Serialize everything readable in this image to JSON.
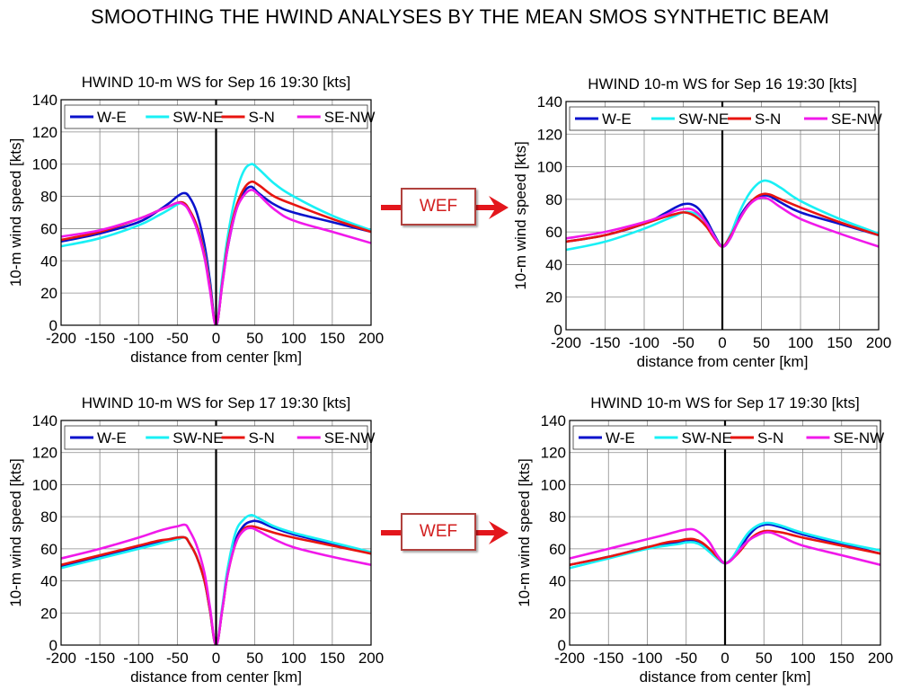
{
  "page": {
    "title": "SMOOTHING THE HWIND ANALYSES BY THE MEAN SMOS SYNTHETIC BEAM"
  },
  "arrow_label": "WEF",
  "series_colors": {
    "W-E": "#0a12cc",
    "SW-NE": "#19f0f5",
    "S-N": "#e8140f",
    "SE-NW": "#f019ea"
  },
  "chart_data": [
    {
      "type": "line",
      "title": "HWIND 10-m WS for Sep 16 19:30 [kts]",
      "xlabel": "distance from center [km]",
      "ylabel": "10-m wind speed [kts]",
      "xlim": [
        -200,
        200
      ],
      "ylim": [
        0,
        140
      ],
      "xticks": [
        -200,
        -150,
        -100,
        -50,
        0,
        50,
        100,
        150,
        200
      ],
      "yticks": [
        0,
        20,
        40,
        60,
        80,
        100,
        120,
        140
      ],
      "grid": true,
      "legend": "top",
      "series": [
        {
          "name": "W-E",
          "x": [
            -200,
            -150,
            -100,
            -75,
            -60,
            -50,
            -42,
            -35,
            -25,
            -15,
            -8,
            0,
            8,
            15,
            25,
            35,
            45,
            55,
            75,
            100,
            150,
            200
          ],
          "y": [
            52,
            57,
            64,
            71,
            76,
            80,
            82,
            80,
            70,
            50,
            28,
            0,
            26,
            48,
            70,
            82,
            86,
            82,
            75,
            70,
            64,
            58
          ]
        },
        {
          "name": "SW-NE",
          "x": [
            -200,
            -150,
            -100,
            -75,
            -60,
            -50,
            -42,
            -35,
            -25,
            -15,
            -8,
            0,
            8,
            15,
            25,
            35,
            45,
            55,
            75,
            100,
            150,
            200
          ],
          "y": [
            49,
            54,
            62,
            68,
            72,
            75,
            76,
            72,
            62,
            45,
            25,
            0,
            30,
            55,
            80,
            95,
            100,
            97,
            88,
            80,
            68,
            59
          ]
        },
        {
          "name": "S-N",
          "x": [
            -200,
            -150,
            -100,
            -75,
            -60,
            -50,
            -42,
            -35,
            -25,
            -15,
            -8,
            0,
            8,
            15,
            25,
            35,
            45,
            55,
            75,
            100,
            150,
            200
          ],
          "y": [
            53,
            58,
            66,
            71,
            74,
            76,
            76,
            72,
            62,
            44,
            24,
            0,
            26,
            50,
            72,
            84,
            89,
            87,
            80,
            75,
            66,
            58
          ]
        },
        {
          "name": "SE-NW",
          "x": [
            -200,
            -150,
            -100,
            -75,
            -60,
            -50,
            -42,
            -35,
            -25,
            -15,
            -8,
            0,
            8,
            15,
            25,
            35,
            45,
            55,
            75,
            100,
            150,
            200
          ],
          "y": [
            55,
            59,
            66,
            71,
            74,
            76,
            75,
            71,
            60,
            42,
            22,
            0,
            25,
            48,
            70,
            80,
            84,
            81,
            72,
            65,
            58,
            51
          ]
        }
      ]
    },
    {
      "type": "line",
      "title": "HWIND 10-m WS for Sep 16 19:30 [kts]",
      "xlabel": "distance from center [km]",
      "ylabel": "10-m wind speed [kts]",
      "xlim": [
        -200,
        200
      ],
      "ylim": [
        0,
        140
      ],
      "xticks": [
        -200,
        -150,
        -100,
        -50,
        0,
        50,
        100,
        150,
        200
      ],
      "yticks": [
        0,
        20,
        40,
        60,
        80,
        100,
        120,
        140
      ],
      "grid": true,
      "legend": "top",
      "series": [
        {
          "name": "W-E",
          "x": [
            -200,
            -150,
            -100,
            -75,
            -60,
            -50,
            -40,
            -30,
            -20,
            -10,
            0,
            10,
            20,
            30,
            40,
            50,
            60,
            75,
            100,
            150,
            200
          ],
          "y": [
            54,
            58,
            65,
            71,
            75,
            77,
            77,
            74,
            67,
            58,
            51,
            56,
            67,
            75,
            80,
            82,
            82,
            78,
            72,
            65,
            58
          ]
        },
        {
          "name": "SW-NE",
          "x": [
            -200,
            -150,
            -100,
            -75,
            -60,
            -50,
            -40,
            -30,
            -20,
            -10,
            0,
            10,
            20,
            30,
            40,
            50,
            60,
            75,
            100,
            150,
            200
          ],
          "y": [
            49,
            54,
            62,
            67,
            70,
            72,
            72,
            70,
            65,
            57,
            51,
            58,
            70,
            80,
            87,
            91,
            91,
            87,
            79,
            68,
            59
          ]
        },
        {
          "name": "S-N",
          "x": [
            -200,
            -150,
            -100,
            -75,
            -60,
            -50,
            -40,
            -30,
            -20,
            -10,
            0,
            10,
            20,
            30,
            40,
            50,
            60,
            75,
            100,
            150,
            200
          ],
          "y": [
            54,
            58,
            65,
            69,
            71,
            72,
            71,
            68,
            63,
            56,
            51,
            57,
            66,
            74,
            80,
            83,
            83,
            80,
            75,
            66,
            58
          ]
        },
        {
          "name": "SE-NW",
          "x": [
            -200,
            -150,
            -100,
            -75,
            -60,
            -50,
            -40,
            -30,
            -20,
            -10,
            0,
            10,
            20,
            30,
            40,
            50,
            60,
            75,
            100,
            150,
            200
          ],
          "y": [
            56,
            60,
            66,
            70,
            73,
            74,
            74,
            71,
            65,
            57,
            51,
            56,
            66,
            74,
            79,
            81,
            80,
            75,
            68,
            59,
            51
          ]
        }
      ]
    },
    {
      "type": "line",
      "title": "HWIND 10-m WS for Sep 17 19:30 [kts]",
      "xlabel": "distance from center [km]",
      "ylabel": "10-m wind speed [kts]",
      "xlim": [
        -200,
        200
      ],
      "ylim": [
        0,
        140
      ],
      "xticks": [
        -200,
        -150,
        -100,
        -50,
        0,
        50,
        100,
        150,
        200
      ],
      "yticks": [
        0,
        20,
        40,
        60,
        80,
        100,
        120,
        140
      ],
      "grid": true,
      "legend": "top",
      "series": [
        {
          "name": "W-E",
          "x": [
            -200,
            -150,
            -100,
            -75,
            -60,
            -50,
            -40,
            -35,
            -25,
            -15,
            -8,
            0,
            8,
            15,
            25,
            35,
            45,
            55,
            75,
            100,
            150,
            200
          ],
          "y": [
            49,
            55,
            61,
            64,
            66,
            67,
            67,
            64,
            55,
            40,
            22,
            0,
            22,
            45,
            65,
            74,
            77,
            77,
            73,
            69,
            63,
            57
          ]
        },
        {
          "name": "SW-NE",
          "x": [
            -200,
            -150,
            -100,
            -75,
            -60,
            -50,
            -40,
            -35,
            -25,
            -15,
            -8,
            0,
            8,
            15,
            25,
            35,
            45,
            55,
            75,
            100,
            150,
            200
          ],
          "y": [
            48,
            54,
            60,
            63,
            65,
            66,
            67,
            64,
            55,
            40,
            22,
            0,
            24,
            48,
            70,
            78,
            81,
            79,
            74,
            70,
            64,
            58
          ]
        },
        {
          "name": "S-N",
          "x": [
            -200,
            -150,
            -100,
            -75,
            -60,
            -50,
            -40,
            -35,
            -25,
            -15,
            -8,
            0,
            8,
            15,
            25,
            35,
            45,
            55,
            75,
            100,
            150,
            200
          ],
          "y": [
            50,
            56,
            62,
            65,
            66,
            67,
            67,
            64,
            55,
            40,
            22,
            0,
            22,
            44,
            63,
            72,
            74,
            73,
            70,
            67,
            62,
            57
          ]
        },
        {
          "name": "SE-NW",
          "x": [
            -200,
            -150,
            -100,
            -75,
            -60,
            -50,
            -40,
            -35,
            -25,
            -15,
            -8,
            0,
            8,
            15,
            25,
            35,
            45,
            55,
            75,
            100,
            150,
            200
          ],
          "y": [
            54,
            60,
            67,
            71,
            73,
            74,
            75,
            72,
            62,
            45,
            24,
            0,
            22,
            44,
            63,
            71,
            73,
            71,
            66,
            61,
            55,
            50
          ]
        }
      ]
    },
    {
      "type": "line",
      "title": "HWIND 10-m WS for Sep 17 19:30 [kts]",
      "xlabel": "distance from center [km]",
      "ylabel": "10-m wind speed [kts]",
      "xlim": [
        -200,
        200
      ],
      "ylim": [
        0,
        140
      ],
      "xticks": [
        -200,
        -150,
        -100,
        -50,
        0,
        50,
        100,
        150,
        200
      ],
      "yticks": [
        0,
        20,
        40,
        60,
        80,
        100,
        120,
        140
      ],
      "grid": true,
      "legend": "top",
      "series": [
        {
          "name": "W-E",
          "x": [
            -200,
            -150,
            -100,
            -75,
            -60,
            -50,
            -40,
            -30,
            -20,
            -10,
            0,
            10,
            20,
            30,
            40,
            50,
            60,
            75,
            100,
            150,
            200
          ],
          "y": [
            50,
            55,
            61,
            63,
            64,
            65,
            65,
            63,
            59,
            54,
            51,
            54,
            61,
            68,
            73,
            75,
            75,
            73,
            69,
            63,
            57
          ]
        },
        {
          "name": "SW-NE",
          "x": [
            -200,
            -150,
            -100,
            -75,
            -60,
            -50,
            -40,
            -30,
            -20,
            -10,
            0,
            10,
            20,
            30,
            40,
            50,
            60,
            75,
            100,
            150,
            200
          ],
          "y": [
            48,
            54,
            60,
            62,
            63,
            64,
            64,
            62,
            58,
            54,
            51,
            55,
            63,
            70,
            74,
            76,
            76,
            74,
            70,
            64,
            59
          ]
        },
        {
          "name": "S-N",
          "x": [
            -200,
            -150,
            -100,
            -75,
            -60,
            -50,
            -40,
            -30,
            -20,
            -10,
            0,
            10,
            20,
            30,
            40,
            50,
            60,
            75,
            100,
            150,
            200
          ],
          "y": [
            50,
            55,
            61,
            64,
            65,
            66,
            66,
            64,
            60,
            55,
            51,
            54,
            59,
            65,
            69,
            71,
            71,
            70,
            67,
            62,
            57
          ]
        },
        {
          "name": "SE-NW",
          "x": [
            -200,
            -150,
            -100,
            -75,
            -60,
            -50,
            -40,
            -30,
            -20,
            -10,
            0,
            10,
            20,
            30,
            40,
            50,
            60,
            75,
            100,
            150,
            200
          ],
          "y": [
            54,
            60,
            66,
            69,
            71,
            72,
            72,
            69,
            64,
            56,
            51,
            54,
            60,
            65,
            68,
            70,
            70,
            67,
            62,
            56,
            50
          ]
        }
      ]
    }
  ]
}
